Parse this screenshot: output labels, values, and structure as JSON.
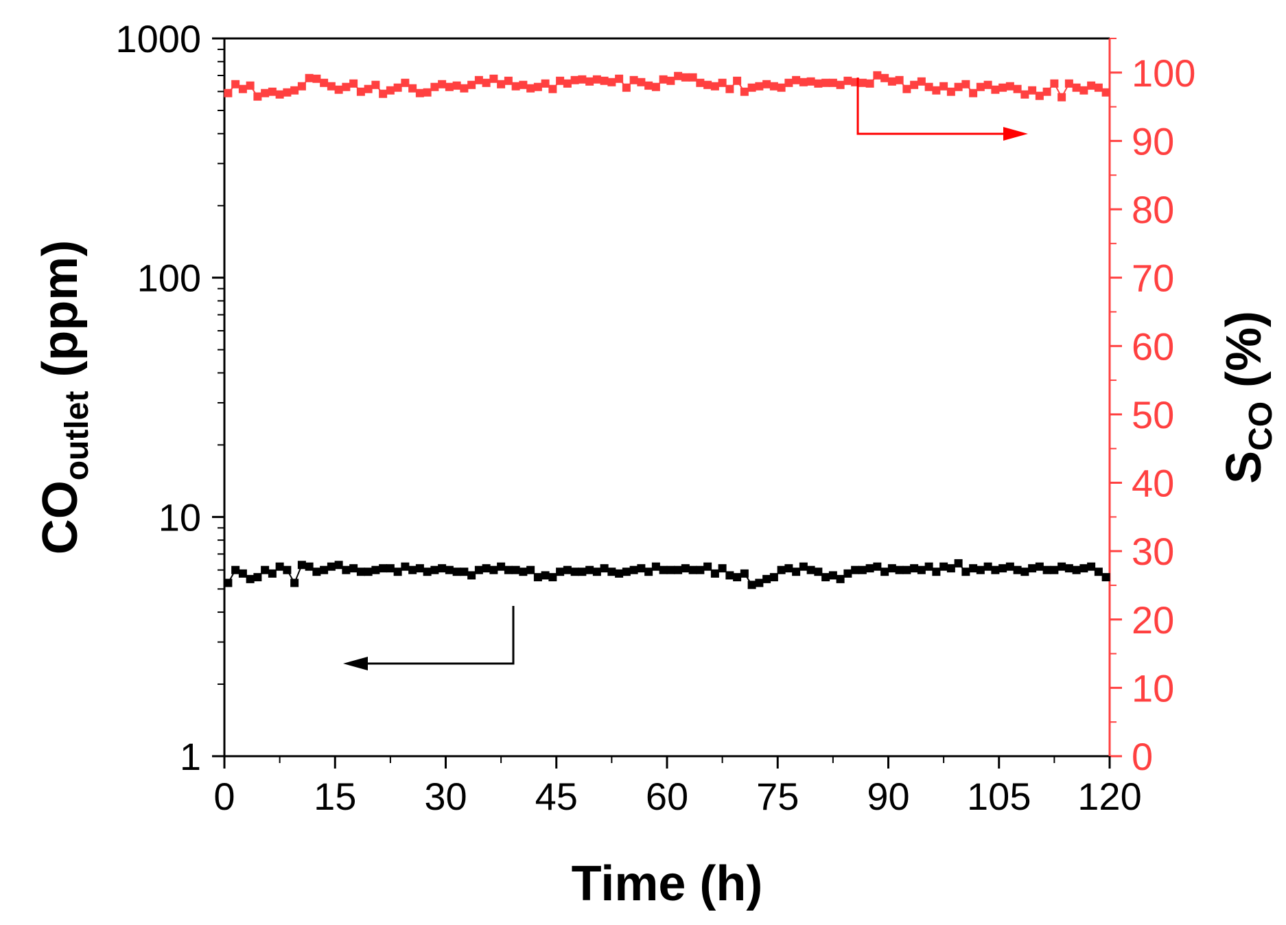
{
  "chart_data": {
    "type": "scatter",
    "xlabel": "Time (h)",
    "ylabel_left": {
      "main": "CO",
      "sub": "outlet",
      "suffix": " (ppm)"
    },
    "ylabel_right": {
      "main": "S",
      "sub": "CO",
      "suffix": " (%)"
    },
    "x_range": [
      0,
      120
    ],
    "x_ticks": [
      0,
      15,
      30,
      45,
      60,
      75,
      90,
      105,
      120
    ],
    "y_left_scale": "log",
    "y_left_range": [
      1,
      1000
    ],
    "y_left_ticks": [
      1,
      10,
      100,
      1000
    ],
    "y_right_range": [
      0,
      105
    ],
    "y_right_ticks": [
      0,
      10,
      20,
      30,
      40,
      50,
      60,
      70,
      80,
      90,
      100
    ],
    "grid": false,
    "legend": "none",
    "annotations": [
      {
        "kind": "arrow",
        "points_to": "left axis",
        "series": "CO outlet"
      },
      {
        "kind": "arrow",
        "points_to": "right axis",
        "series": "S CO"
      }
    ],
    "series": [
      {
        "axis": "left",
        "color": "#000000",
        "x": [
          0.5,
          1.5,
          2.5,
          3.5,
          4.5,
          5.5,
          6.5,
          7.5,
          8.5,
          9.5,
          10.5,
          11.5,
          12.5,
          13.5,
          14.5,
          15.5,
          16.5,
          17.5,
          18.5,
          19.5,
          20.5,
          21.5,
          22.5,
          23.5,
          24.5,
          25.5,
          26.5,
          27.5,
          28.5,
          29.5,
          30.5,
          31.5,
          32.5,
          33.5,
          34.5,
          35.5,
          36.5,
          37.5,
          38.5,
          39.5,
          40.5,
          41.5,
          42.5,
          43.5,
          44.5,
          45.5,
          46.5,
          47.5,
          48.5,
          49.5,
          50.5,
          51.5,
          52.5,
          53.5,
          54.5,
          55.5,
          56.5,
          57.5,
          58.5,
          59.5,
          60.5,
          61.5,
          62.5,
          63.5,
          64.5,
          65.5,
          66.5,
          67.5,
          68.5,
          69.5,
          70.5,
          71.5,
          72.5,
          73.5,
          74.5,
          75.5,
          76.5,
          77.5,
          78.5,
          79.5,
          80.5,
          81.5,
          82.5,
          83.5,
          84.5,
          85.5,
          86.5,
          87.5,
          88.5,
          89.5,
          90.5,
          91.5,
          92.5,
          93.5,
          94.5,
          95.5,
          96.5,
          97.5,
          98.5,
          99.5,
          100.5,
          101.5,
          102.5,
          103.5,
          104.5,
          105.5,
          106.5,
          107.5,
          108.5,
          109.5,
          110.5,
          111.5,
          112.5,
          113.5,
          114.5,
          115.5,
          116.5,
          117.5,
          118.5,
          119.5
        ],
        "y": [
          5.3,
          6.0,
          5.8,
          5.5,
          5.6,
          6.0,
          5.8,
          6.2,
          6.0,
          5.3,
          6.3,
          6.2,
          5.9,
          6.0,
          6.2,
          6.3,
          6.0,
          6.1,
          5.9,
          5.9,
          6.0,
          6.1,
          6.1,
          5.9,
          6.2,
          6.0,
          6.1,
          5.9,
          6.0,
          6.1,
          6.0,
          5.9,
          5.9,
          5.7,
          6.0,
          6.1,
          6.0,
          6.2,
          6.0,
          6.0,
          5.9,
          6.0,
          5.6,
          5.7,
          5.6,
          5.9,
          6.0,
          5.9,
          5.9,
          6.0,
          5.9,
          6.1,
          5.9,
          5.8,
          5.9,
          6.0,
          6.1,
          5.9,
          6.2,
          6.0,
          6.0,
          6.0,
          6.1,
          6.0,
          6.0,
          6.2,
          5.8,
          6.1,
          5.7,
          5.6,
          5.8,
          5.2,
          5.3,
          5.5,
          5.6,
          6.0,
          6.1,
          5.9,
          6.2,
          6.0,
          5.9,
          5.6,
          5.7,
          5.5,
          5.8,
          6.0,
          6.0,
          6.1,
          6.2,
          5.9,
          6.1,
          6.0,
          6.0,
          6.1,
          6.0,
          6.2,
          5.9,
          6.2,
          6.1,
          6.4,
          5.9,
          6.1,
          6.0,
          6.2,
          6.0,
          6.1,
          6.2,
          6.0,
          5.9,
          6.1,
          6.2,
          6.0,
          6.0,
          6.2,
          6.1,
          6.0,
          6.1,
          6.2,
          5.9,
          5.6
        ]
      },
      {
        "axis": "right",
        "color": "#ff4040",
        "x": [
          0.5,
          1.5,
          2.5,
          3.5,
          4.5,
          5.5,
          6.5,
          7.5,
          8.5,
          9.5,
          10.5,
          11.5,
          12.5,
          13.5,
          14.5,
          15.5,
          16.5,
          17.5,
          18.5,
          19.5,
          20.5,
          21.5,
          22.5,
          23.5,
          24.5,
          25.5,
          26.5,
          27.5,
          28.5,
          29.5,
          30.5,
          31.5,
          32.5,
          33.5,
          34.5,
          35.5,
          36.5,
          37.5,
          38.5,
          39.5,
          40.5,
          41.5,
          42.5,
          43.5,
          44.5,
          45.5,
          46.5,
          47.5,
          48.5,
          49.5,
          50.5,
          51.5,
          52.5,
          53.5,
          54.5,
          55.5,
          56.5,
          57.5,
          58.5,
          59.5,
          60.5,
          61.5,
          62.5,
          63.5,
          64.5,
          65.5,
          66.5,
          67.5,
          68.5,
          69.5,
          70.5,
          71.5,
          72.5,
          73.5,
          74.5,
          75.5,
          76.5,
          77.5,
          78.5,
          79.5,
          80.5,
          81.5,
          82.5,
          83.5,
          84.5,
          85.5,
          86.5,
          87.5,
          88.5,
          89.5,
          90.5,
          91.5,
          92.5,
          93.5,
          94.5,
          95.5,
          96.5,
          97.5,
          98.5,
          99.5,
          100.5,
          101.5,
          102.5,
          103.5,
          104.5,
          105.5,
          106.5,
          107.5,
          108.5,
          109.5,
          110.5,
          111.5,
          112.5,
          113.5,
          114.5,
          115.5,
          116.5,
          117.5,
          118.5,
          119.5
        ],
        "y": [
          97.0,
          98.3,
          97.6,
          98.1,
          96.5,
          97.0,
          97.2,
          96.8,
          97.1,
          97.4,
          98.0,
          99.2,
          99.1,
          98.5,
          98.0,
          97.5,
          97.9,
          98.4,
          97.2,
          97.6,
          98.2,
          96.9,
          97.4,
          97.8,
          98.5,
          97.7,
          97.0,
          97.1,
          97.9,
          98.3,
          97.9,
          98.1,
          97.7,
          98.2,
          98.9,
          98.5,
          99.1,
          98.3,
          98.8,
          98.0,
          98.2,
          97.7,
          97.9,
          98.4,
          97.6,
          98.8,
          98.4,
          98.9,
          99.0,
          98.7,
          99.0,
          98.8,
          98.6,
          99.1,
          97.8,
          98.9,
          98.6,
          98.1,
          97.9,
          99.0,
          98.8,
          99.5,
          99.3,
          99.3,
          98.5,
          98.2,
          98.0,
          98.5,
          97.6,
          98.8,
          97.2,
          97.8,
          98.0,
          98.3,
          98.0,
          97.8,
          98.5,
          98.9,
          98.6,
          98.7,
          98.4,
          98.5,
          98.5,
          98.2,
          98.8,
          98.6,
          98.5,
          98.4,
          99.6,
          99.2,
          98.7,
          98.9,
          97.6,
          98.2,
          98.7,
          97.9,
          97.4,
          98.0,
          97.2,
          97.9,
          98.3,
          97.0,
          97.9,
          98.2,
          97.5,
          97.8,
          98.0,
          97.6,
          96.8,
          97.4,
          96.6,
          97.2,
          98.4,
          96.4,
          98.4,
          97.8,
          97.4,
          98.1,
          97.8,
          97.1
        ]
      }
    ]
  }
}
